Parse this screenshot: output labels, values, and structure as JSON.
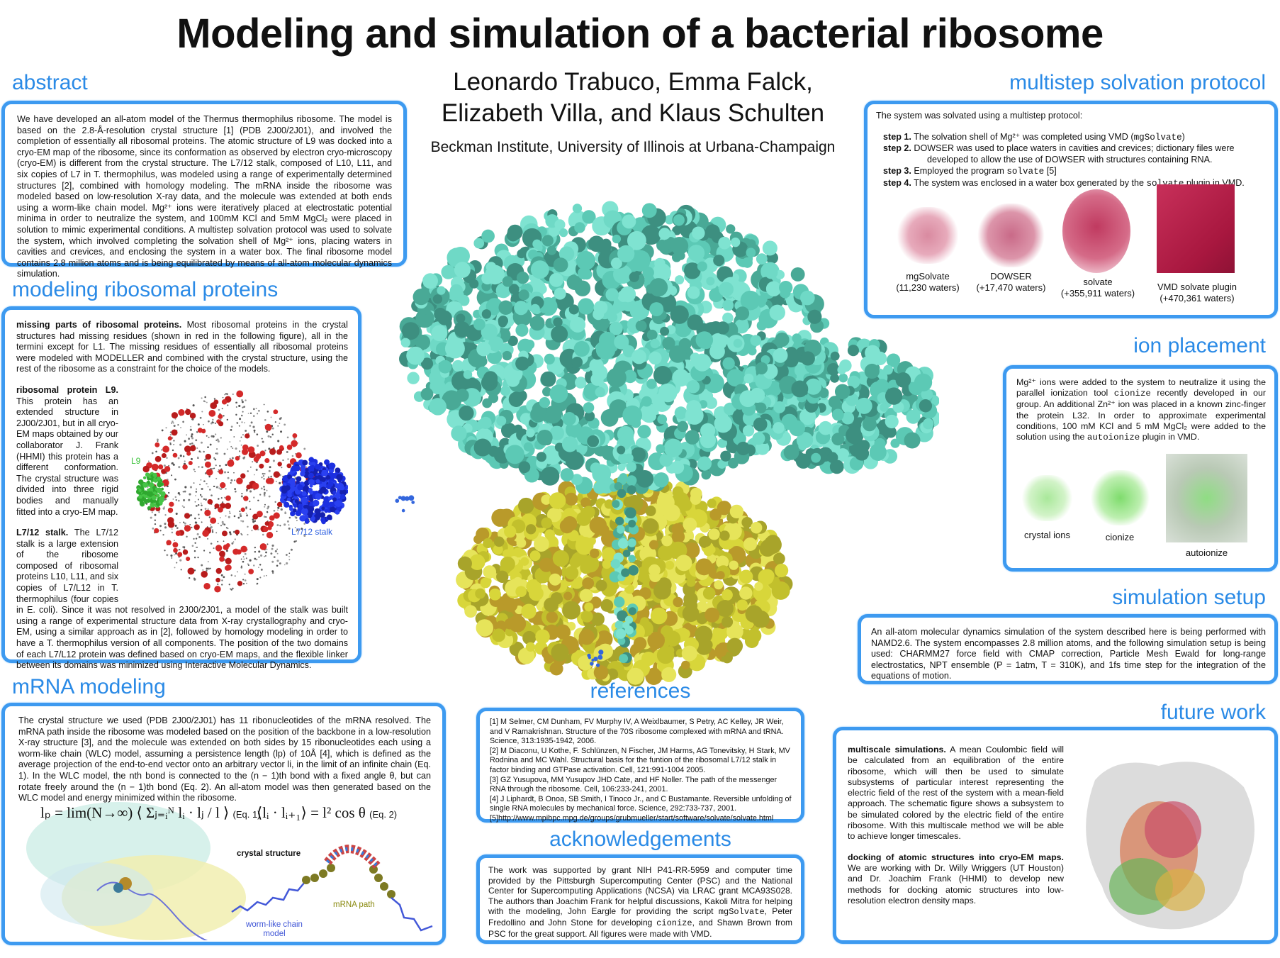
{
  "title": "Modeling and simulation of a bacterial ribosome",
  "authors": {
    "line1": "Leonardo Trabuco, Emma Falck,",
    "line2": "Elizabeth Villa, and Klaus Schulten",
    "affiliation": "Beckman Institute, University of Illinois at Urbana-Champaign"
  },
  "colors": {
    "heading": "#2a8ae6",
    "box_border": "#3d9af0",
    "protein_teal": "#6fd9c6",
    "protein_yellow": "#d8d63a"
  },
  "abstract": {
    "heading": "abstract",
    "text": "We have developed an all-atom model of the Thermus thermophilus ribosome. The model is based on the 2.8-Å-resolution crystal structure [1] (PDB 2J00/2J01), and involved the completion of essentially all ribosomal proteins. The atomic structure of L9 was docked into a cryo-EM map of the ribosome, since its conformation as observed by electron cryo-microscopy (cryo-EM) is different from the crystal structure. The L7/12 stalk, composed of L10, L11, and six copies of L7 in T. thermophilus, was modeled using a range of experimentally determined structures [2], combined with homology modeling. The mRNA inside the ribosome was modeled based on low-resolution X-ray data, and the molecule was extended at both ends using a worm-like chain model. Mg²⁺ ions were iteratively placed at electrostatic potential minima in order to neutralize the system, and 100mM KCl and 5mM MgCl₂ were placed in solution to mimic experimental conditions. A multistep solvation protocol was used to solvate the system, which involved completing the solvation shell of Mg²⁺ ions, placing waters in cavities and crevices, and enclosing the system in a water box. The final ribosome model contains 2.8 million atoms and is being equilibrated by means of all-atom molecular dynamics simulation."
  },
  "modeling": {
    "heading": "modeling ribosomal proteins",
    "p1_lead": "missing parts of ribosomal proteins.",
    "p1": " Most ribosomal proteins in the crystal structures had missing residues (shown in red in the following figure), all in the termini except for L1. The missing residues of essentially all ribosomal proteins were modeled with MODELLER and combined with the crystal structure, using the rest of the ribosome as a constraint for the choice of the models.",
    "p2_lead": "ribosomal protein L9.",
    "p2": " This protein has an extended structure in 2J00/2J01, but in all cryo-EM maps obtained by our collaborator J. Frank (HHMI) this protein has a different conformation. The crystal structure was divided into three rigid bodies and manually fitted into a cryo-EM map.",
    "p3_lead": "L7/12 stalk.",
    "p3": " The L7/12 stalk is a large extension of the ribosome composed of ribosomal proteins L10, L11, and six copies of L7/L12 in T. thermophilus (four copies in E. coli). Since it was not resolved in 2J00/2J01, a model of the stalk was built using a range of experimental structure data from X-ray crystallography and cryo-EM, using a similar approach as in [2], followed by homology modeling in order to have a T. thermophilus version of all components. The position of the two domains of each L7/L12 protein was defined based on cryo-EM maps, and the flexible linker between its domains was minimized using Interactive Molecular Dynamics.",
    "fig_label_l9": "L9",
    "fig_label_stalk": "L7/12 stalk"
  },
  "mrna": {
    "heading": "mRNA modeling",
    "text": "The crystal structure we used (PDB 2J00/2J01) has 11 ribonucleotides of the mRNA resolved. The mRNA path inside the ribosome was modeled based on the position of the backbone in a low-resolution X-ray structure [3], and the molecule was extended on both sides by 15 ribonucleotides each using a worm-like chain (WLC) model, assuming a persistence length (lp) of 10Å [4], which is defined as the average projection of the end-to-end vector onto an arbitrary vector li, in the limit of an infinite chain (Eq. 1). In the WLC model, the nth bond is connected to the (n − 1)th bond with a fixed angle θ, but can rotate freely around the (n − 1)th bond (Eq. 2). An all-atom model was then generated based on the WLC model and energy minimized within the ribosome.",
    "eq1": "lₚ = lim(N→∞) ⟨ Σⱼ₌ᵢᴺ lᵢ · lⱼ / l ⟩",
    "eq1_label": "(Eq. 1)",
    "eq2": "⟨lᵢ · lᵢ₊₁⟩ = l² cos θ",
    "eq2_label": "(Eq. 2)",
    "label_crystal": "crystal structure",
    "label_path": "mRNA path",
    "label_wlc": "worm-like chain model"
  },
  "references": {
    "heading": "references",
    "items": [
      "[1] M Selmer, CM Dunham, FV Murphy IV, A Weixlbaumer, S Petry, AC Kelley, JR Weir, and V Ramakrishnan. Structure of the 70S ribosome complexed with mRNA and tRNA. Science, 313:1935-1942, 2006.",
      "[2] M Diaconu, U Kothe, F. Schlünzen, N Fischer, JM Harms, AG Tonevitsky, H Stark, MV Rodnina and MC Wahl. Structural basis for the funtion of the ribosomal L7/12 stalk in factor binding and GTPase activation. Cell, 121:991-1004 2005.",
      "[3] GZ Yusupova, MM Yusupov JHD Cate, and HF Noller. The path of the messenger RNA through the ribosome. Cell, 106:233-241, 2001.",
      "[4] J Liphardt, B Onoa, SB Smith, I Tinoco Jr., and C Bustamante. Reversible unfolding of single RNA molecules by mechanical force. Science, 292:733-737, 2001.",
      "[5]http://www.mpibpc.mpg.de/groups/grubmueller/start/software/solvate/solvate.html"
    ]
  },
  "acknowledgements": {
    "heading": "acknowledgements",
    "text1": "The work was supported by grant NIH P41-RR-5959 and computer time provided by the Pittsburgh Supercomputing Center (PSC) and the National Center for Supercomputing Applications (NCSA) via LRAC grant MCA93S028. The authors than Joachim Frank for helpful discussions, Kakoli Mitra for helping with the modeling, John Eargle for providing the script ",
    "code1": "mgSolvate",
    "text2": ", Peter Fredollino and John Stone for developing ",
    "code2": "cionize",
    "text3": ", and Shawn Brown from PSC for the great support. All figures were made with VMD."
  },
  "solvation": {
    "heading": "multistep solvation protocol",
    "intro": "The system was solvated using a multistep protocol:",
    "steps": [
      {
        "label": "step 1.",
        "text": " The solvation shell of Mg²⁺ was completed using VMD (",
        "code": "mgSolvate",
        "after": ")"
      },
      {
        "label": "step 2.",
        "text": " DOWSER was used to place waters in cavities and crevices; dictionary files were developed to allow the use of DOWSER with structures containing RNA.",
        "code": "",
        "after": ""
      },
      {
        "label": "step 3.",
        "text": " Employed the program ",
        "code": "solvate",
        "after": " [5]"
      },
      {
        "label": "step 4.",
        "text": " The system was enclosed in a water box generated by the ",
        "code": "solvate",
        "after": " plugin in VMD."
      }
    ],
    "figures": [
      {
        "name": "mgSolvate",
        "count": "(11,230 waters)"
      },
      {
        "name": "DOWSER",
        "count": "(+17,470 waters)"
      },
      {
        "name": "solvate",
        "count": "(+355,911 waters)"
      },
      {
        "name": "VMD solvate plugin",
        "count": "(+470,361 waters)"
      }
    ]
  },
  "ions": {
    "heading": "ion placement",
    "t1": "Mg²⁺ ions were added to the system to neutralize it using the parallel ionization tool ",
    "c1": "cionize",
    "t2": " recently developed in our group. An additional Zn²⁺ ion was placed in a known zinc-finger the protein L32. In order to approximate experimental conditions, 100 mM KCl and 5 mM MgCl₂ were added to the solution using the ",
    "c2": "autoionize",
    "t3": " plugin in VMD.",
    "figures": [
      "crystal ions",
      "cionize",
      "autoionize"
    ]
  },
  "simulation": {
    "heading": "simulation setup",
    "text": "An all-atom molecular dynamics simulation of the system described here is being performed with NAMD2.6. The system encompasses 2.8 million atoms, and the following simulation setup is being used: CHARMM27 force field with CMAP correction, Particle Mesh Ewald for long-range electrostatics, NPT ensemble (P = 1atm, T = 310K), and 1fs time step for the integration of the equations of motion."
  },
  "future": {
    "heading": "future work",
    "p1_lead": "multiscale simulations.",
    "p1": " A mean Coulombic field will be calculated from an equilibration of the entire ribosome, which will then be used to simulate subsystems of particular interest representing the electric field of the rest of the system with a mean-field approach. The schematic figure shows a subsystem to be simulated colored by the electric field of the entire ribosome. With this multiscale method we will be able to achieve longer timescales.",
    "p2_lead": "docking of atomic structures into cryo-EM maps.",
    "p2": " We are working with Dr. Willy Wriggers (UT Houston) and Dr. Joachim Frank (HHMI) to develop new methods for docking atomic structures into low-resolution electron density maps."
  }
}
